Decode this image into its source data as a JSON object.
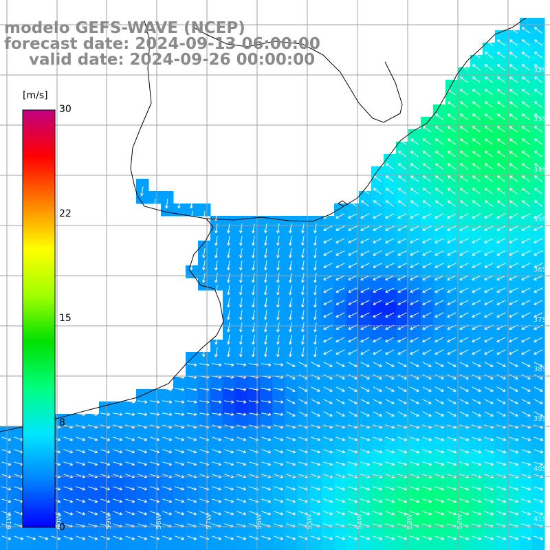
{
  "header": {
    "title": "modelo GEFS-WAVE (NCEP)",
    "forecast": "forecast date: 2024-09-13 06:00:00",
    "valid": "valid date: 2024-09-26 00:00:00"
  },
  "colorbar": {
    "units": "[m/s]",
    "labels": [
      "30",
      "22",
      "15",
      "8",
      "0"
    ],
    "min": 0,
    "max": 30,
    "colors": [
      "#0000ff",
      "#0080ff",
      "#00e5ff",
      "#00ff80",
      "#00e000",
      "#a0ff00",
      "#ffff00",
      "#ff8000",
      "#ff0000",
      "#c00080"
    ]
  },
  "grid_labels": {
    "latitude": [
      "32S",
      "33S",
      "34S",
      "35S",
      "36S",
      "37S",
      "38S",
      "39S",
      "40S",
      "41S"
    ],
    "longitude": [
      "61W",
      "60W",
      "59W",
      "58W",
      "57W",
      "56W",
      "55W",
      "54W",
      "53W",
      "52W"
    ]
  },
  "map": {
    "land_color": "#ffffff",
    "coast_color": "#000000",
    "grid_color": "#a0a0a0",
    "arrow_color": "#ffffff"
  }
}
